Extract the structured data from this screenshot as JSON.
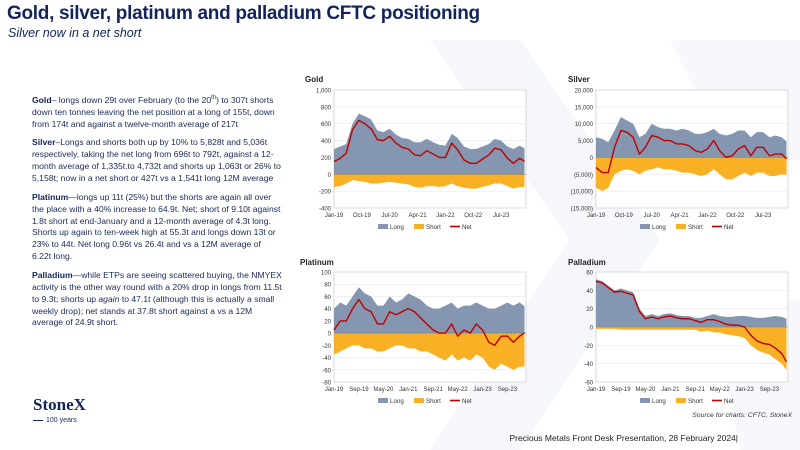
{
  "slide": {
    "title": "Gold, silver, platinum and palladium CFTC positioning",
    "subtitle": "Silver now in a net short",
    "source": "Source for charts: CFTC, StoneX",
    "footer": "Precious Metals Front Desk Presentation, 28 February 2024|",
    "logo": {
      "name": "StoneX",
      "sub": "100 years"
    }
  },
  "notes": [
    {
      "metal": "Gold",
      "pre": "–  longs down 29t over February (to the 20",
      "sup": "th",
      "post": ") to 307t shorts down ten tonnes leaving the net position at a long of 155t, down from 174t and  against a twelve-month average of 217t"
    },
    {
      "metal": "Silver",
      "pre": "–Longs and shorts both up by 10% to 5,828t and 5,036t respectively, taking the net long from 696t to 792t, against a 12-month average of 1,335t.to 4,732t and shorts up 1,063t or 26% to 5,158t; now in a net short or 427t vs a 1,541t long  12M average",
      "sup": "",
      "post": ""
    },
    {
      "metal": "Platinum",
      "pre": "—longs up 11t (25%) but the shorts are again all over the place with a 40% increase to 64.9t.  Net; short of 9.10t against 1.8t short at end-January and a 12-month average of 4.3t long.  Shorts up again to ten-week high at 55.3t and longs down 13t or 23% to 44t.  Net long 0.96t vs 26.4t and vs a 12M average of 6.22t long.",
      "sup": "",
      "post": ""
    },
    {
      "metal": "Palladium",
      "pre": "—while ETPs are seeing scattered buying, the NMYEX activity is the other way round with a 20% drop in longs from 11.5t to 9.3t; shorts up ",
      "em": "again",
      "post": " to 47.1t (although this is actually a small weekly drop); net stands  at 37.8t short against a vs a 12M average of 24.9t short.",
      "sup": ""
    }
  ],
  "colors": {
    "long": "#8496b0",
    "short": "#f8b125",
    "net": "#c00000",
    "title": "#12245a"
  },
  "chart_data": [
    {
      "type": "area",
      "title": "Gold",
      "xlabel": "",
      "ylabel": "",
      "ylim": [
        -400,
        1000
      ],
      "yticks": [
        1000,
        800,
        600,
        400,
        200,
        0,
        -200,
        -400
      ],
      "ytick_labels": [
        "1,000",
        "800",
        "600",
        "400",
        "200",
        "0",
        "-200",
        "-400"
      ],
      "xlim": [
        2019.0,
        2024.17
      ],
      "xticks": [
        2019.0,
        2019.75,
        2020.5,
        2021.25,
        2022.0,
        2022.75,
        2023.5
      ],
      "xtick_labels": [
        "Jan-19",
        "Oct-19",
        "Jul-20",
        "Apr-21",
        "Jan-22",
        "Oct-22",
        "Jul-23"
      ],
      "x": [
        2019.0,
        2019.17,
        2019.33,
        2019.5,
        2019.67,
        2019.83,
        2020.0,
        2020.17,
        2020.33,
        2020.5,
        2020.67,
        2020.83,
        2021.0,
        2021.17,
        2021.33,
        2021.5,
        2021.67,
        2021.83,
        2022.0,
        2022.17,
        2022.33,
        2022.5,
        2022.67,
        2022.83,
        2023.0,
        2023.17,
        2023.33,
        2023.5,
        2023.67,
        2023.83,
        2024.0,
        2024.13
      ],
      "series": [
        {
          "name": "Long",
          "values": [
            300,
            330,
            360,
            600,
            720,
            690,
            650,
            520,
            500,
            540,
            470,
            430,
            420,
            380,
            380,
            420,
            380,
            350,
            340,
            480,
            430,
            330,
            300,
            300,
            330,
            360,
            420,
            400,
            330,
            300,
            340,
            307
          ]
        },
        {
          "name": "Short",
          "values": [
            -150,
            -140,
            -110,
            -70,
            -80,
            -90,
            -110,
            -110,
            -100,
            -90,
            -100,
            -110,
            -120,
            -150,
            -160,
            -140,
            -140,
            -150,
            -140,
            -110,
            -140,
            -160,
            -170,
            -170,
            -150,
            -130,
            -110,
            -110,
            -140,
            -170,
            -150,
            -152
          ]
        },
        {
          "name": "Net",
          "values": [
            150,
            190,
            250,
            530,
            640,
            600,
            540,
            410,
            400,
            450,
            370,
            320,
            300,
            230,
            220,
            280,
            240,
            200,
            200,
            370,
            290,
            170,
            130,
            130,
            180,
            230,
            310,
            290,
            190,
            130,
            190,
            155
          ]
        }
      ]
    },
    {
      "type": "area",
      "title": "Silver",
      "xlabel": "",
      "ylabel": "",
      "ylim": [
        -15000,
        20000
      ],
      "yticks": [
        20000,
        15000,
        10000,
        5000,
        0,
        -5000,
        -10000,
        -15000
      ],
      "ytick_labels": [
        "20,000",
        "15,000",
        "10,000",
        "5,000",
        "0",
        "(5,000)",
        "(10,000)",
        "(15,000)"
      ],
      "xlim": [
        2019.0,
        2024.17
      ],
      "xticks": [
        2019.0,
        2019.75,
        2020.5,
        2021.25,
        2022.0,
        2022.75,
        2023.5
      ],
      "xtick_labels": [
        "Jan-19",
        "Oct-19",
        "Jul-20",
        "Apr-21",
        "Jan-22",
        "Oct-22",
        "Jul-23"
      ],
      "x": [
        2019.0,
        2019.17,
        2019.33,
        2019.5,
        2019.67,
        2019.83,
        2020.0,
        2020.17,
        2020.33,
        2020.5,
        2020.67,
        2020.83,
        2021.0,
        2021.17,
        2021.33,
        2021.5,
        2021.67,
        2021.83,
        2022.0,
        2022.17,
        2022.33,
        2022.5,
        2022.67,
        2022.83,
        2023.0,
        2023.17,
        2023.33,
        2023.5,
        2023.67,
        2023.83,
        2024.0,
        2024.13
      ],
      "series": [
        {
          "name": "Long",
          "values": [
            6000,
            5500,
            4500,
            8000,
            12000,
            11000,
            10000,
            6000,
            7000,
            10000,
            9000,
            8500,
            8500,
            8000,
            8500,
            8000,
            7000,
            7000,
            7500,
            8500,
            7000,
            6500,
            7000,
            8000,
            8000,
            6000,
            7500,
            7500,
            6000,
            6500,
            6000,
            4732
          ]
        },
        {
          "name": "Short",
          "values": [
            -9000,
            -10000,
            -9000,
            -5000,
            -4000,
            -3500,
            -4000,
            -5000,
            -4000,
            -3500,
            -3000,
            -3500,
            -3500,
            -4000,
            -4500,
            -4500,
            -5000,
            -5500,
            -5000,
            -3500,
            -5000,
            -6500,
            -6500,
            -5500,
            -4500,
            -5500,
            -4500,
            -4500,
            -5500,
            -5500,
            -5000,
            -5158
          ]
        },
        {
          "name": "Net",
          "values": [
            -3000,
            -4500,
            -4500,
            3000,
            8000,
            7500,
            6000,
            1000,
            3000,
            6500,
            6000,
            5000,
            5000,
            4000,
            4000,
            3500,
            2000,
            1500,
            2500,
            5000,
            2000,
            0,
            500,
            2500,
            3500,
            500,
            3000,
            3000,
            500,
            1000,
            1000,
            -427
          ]
        }
      ]
    },
    {
      "type": "area",
      "title": "Platinum",
      "xlabel": "",
      "ylabel": "",
      "ylim": [
        -80,
        100
      ],
      "yticks": [
        100,
        80,
        60,
        40,
        20,
        0,
        -20,
        -40,
        -60,
        -80
      ],
      "ytick_labels": [
        "100",
        "80",
        "60",
        "40",
        "20",
        "0",
        "-20",
        "-40",
        "-60",
        "-80"
      ],
      "xlim": [
        2019.0,
        2024.17
      ],
      "xticks": [
        2019.0,
        2019.67,
        2020.33,
        2021.0,
        2021.67,
        2022.33,
        2023.0,
        2023.67
      ],
      "xtick_labels": [
        "Jan-19",
        "Sep-19",
        "May-20",
        "Jan-21",
        "Sep-21",
        "May-22",
        "Jan-23",
        "Sep-23"
      ],
      "x": [
        2019.0,
        2019.17,
        2019.33,
        2019.5,
        2019.67,
        2019.83,
        2020.0,
        2020.17,
        2020.33,
        2020.5,
        2020.67,
        2020.83,
        2021.0,
        2021.17,
        2021.33,
        2021.5,
        2021.67,
        2021.83,
        2022.0,
        2022.17,
        2022.33,
        2022.5,
        2022.67,
        2022.83,
        2023.0,
        2023.17,
        2023.33,
        2023.5,
        2023.67,
        2023.83,
        2024.0,
        2024.13
      ],
      "series": [
        {
          "name": "Long",
          "values": [
            40,
            50,
            45,
            60,
            75,
            65,
            60,
            45,
            45,
            60,
            50,
            55,
            65,
            60,
            55,
            45,
            40,
            40,
            45,
            50,
            40,
            45,
            45,
            50,
            45,
            40,
            40,
            45,
            50,
            45,
            50,
            44
          ]
        },
        {
          "name": "Short",
          "values": [
            -35,
            -30,
            -25,
            -20,
            -20,
            -25,
            -25,
            -30,
            -30,
            -25,
            -20,
            -20,
            -25,
            -25,
            -30,
            -30,
            -35,
            -40,
            -45,
            -35,
            -45,
            -40,
            -45,
            -35,
            -40,
            -55,
            -60,
            -50,
            -55,
            -60,
            -55,
            -55
          ]
        },
        {
          "name": "Net",
          "values": [
            5,
            20,
            20,
            40,
            55,
            40,
            35,
            15,
            15,
            35,
            30,
            35,
            40,
            35,
            25,
            15,
            5,
            0,
            0,
            15,
            -5,
            5,
            0,
            15,
            5,
            -15,
            -20,
            -5,
            -5,
            -15,
            -5,
            1
          ]
        }
      ]
    },
    {
      "type": "area",
      "title": "Palladium",
      "xlabel": "",
      "ylabel": "",
      "ylim": [
        -60,
        60
      ],
      "yticks": [
        60,
        40,
        20,
        0,
        -20,
        -40,
        -60
      ],
      "ytick_labels": [
        "60",
        "40",
        "20",
        "0",
        "-20",
        "-40",
        "-60"
      ],
      "xlim": [
        2019.0,
        2024.17
      ],
      "xticks": [
        2019.0,
        2019.67,
        2020.33,
        2021.0,
        2021.67,
        2022.33,
        2023.0,
        2023.67
      ],
      "xtick_labels": [
        "Jan-19",
        "Sep-19",
        "May-20",
        "Jan-21",
        "Sep-21",
        "May-22",
        "Jan-23",
        "Sep-23"
      ],
      "x": [
        2019.0,
        2019.17,
        2019.33,
        2019.5,
        2019.67,
        2019.83,
        2020.0,
        2020.17,
        2020.33,
        2020.5,
        2020.67,
        2020.83,
        2021.0,
        2021.17,
        2021.33,
        2021.5,
        2021.67,
        2021.83,
        2022.0,
        2022.17,
        2022.33,
        2022.5,
        2022.67,
        2022.83,
        2023.0,
        2023.17,
        2023.33,
        2023.5,
        2023.67,
        2023.83,
        2024.0,
        2024.13
      ],
      "series": [
        {
          "name": "Long",
          "values": [
            52,
            50,
            45,
            40,
            42,
            40,
            38,
            20,
            12,
            14,
            12,
            14,
            15,
            13,
            12,
            12,
            10,
            10,
            12,
            14,
            12,
            11,
            11,
            12,
            12,
            11,
            10,
            10,
            11,
            12,
            11,
            9
          ]
        },
        {
          "name": "Short",
          "values": [
            -2,
            -2,
            -2,
            -2,
            -3,
            -3,
            -3,
            -3,
            -3,
            -3,
            -3,
            -3,
            -3,
            -3,
            -3,
            -3,
            -3,
            -5,
            -4,
            -6,
            -6,
            -8,
            -9,
            -10,
            -12,
            -20,
            -25,
            -28,
            -30,
            -35,
            -40,
            -47
          ]
        },
        {
          "name": "Net",
          "values": [
            50,
            48,
            43,
            38,
            39,
            37,
            35,
            17,
            9,
            11,
            9,
            11,
            12,
            10,
            9,
            9,
            7,
            5,
            8,
            8,
            6,
            3,
            2,
            2,
            0,
            -9,
            -15,
            -18,
            -19,
            -23,
            -29,
            -38
          ]
        }
      ]
    }
  ]
}
